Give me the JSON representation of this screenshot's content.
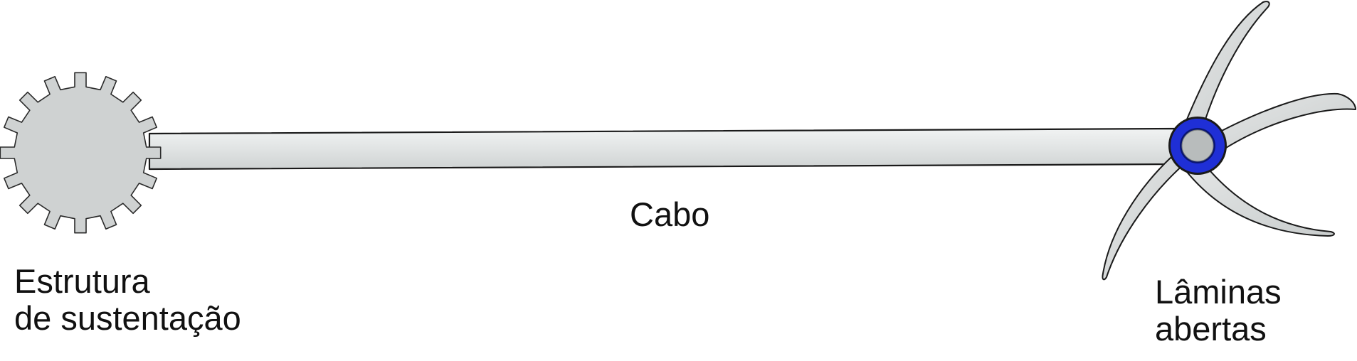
{
  "labels": {
    "cable": "Cabo",
    "support_line1": "Estrutura",
    "support_line2": "de sustentação",
    "blades_line1": "Lâminas",
    "blades_line2": "abertas"
  },
  "colors": {
    "gear_fill": "#cfd2d2",
    "cable_fill": "#dfe2e2",
    "blade_fill": "#d6d8d8",
    "hub_ring": "#1f2fd6",
    "hub_center": "#b8bcbc",
    "outline": "#1a1a1a"
  },
  "icons": {
    "support": "gear-icon",
    "blades": "propeller-blades-icon",
    "hub": "hub-ring-icon"
  }
}
